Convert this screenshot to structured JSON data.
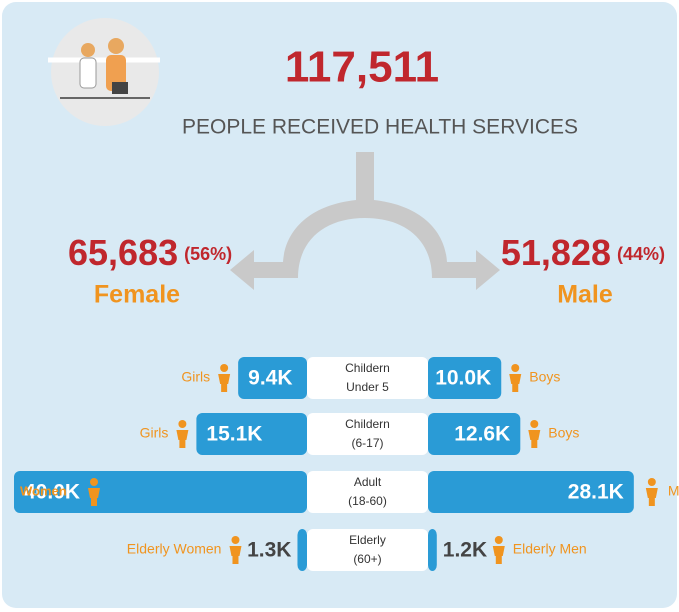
{
  "header": {
    "total": "117,511",
    "subtitle": "PEOPLE RECEIVED HEALTH SERVICES"
  },
  "female": {
    "count": "65,683",
    "share": "(56%)",
    "label": "Female"
  },
  "male": {
    "count": "51,828",
    "share": "(44%)",
    "label": "Male"
  },
  "chart_data": {
    "type": "butterfly",
    "categories": [
      [
        "Childern",
        "Under 5"
      ],
      [
        "Childern",
        "(6-17)"
      ],
      [
        "Adult",
        "(18-60)"
      ],
      [
        "Elderly",
        "(60+)"
      ]
    ],
    "series": [
      {
        "color": "#2a9bd6",
        "groups": [
          "Girls",
          "Girls",
          "Women",
          "Elderly Women"
        ],
        "values": [
          9400,
          15100,
          40000,
          1300
        ],
        "value_labels": [
          "9.4K",
          "15.1K",
          "40.0K",
          "1.3K"
        ]
      },
      {
        "color": "#2a9bd6",
        "groups": [
          "Boys",
          "Boys",
          "Men",
          "Elderly Men"
        ],
        "values": [
          10000,
          12600,
          28100,
          1200
        ],
        "value_labels": [
          "10.0K",
          "12.6K",
          "28.1K",
          "1.2K"
        ]
      }
    ]
  }
}
